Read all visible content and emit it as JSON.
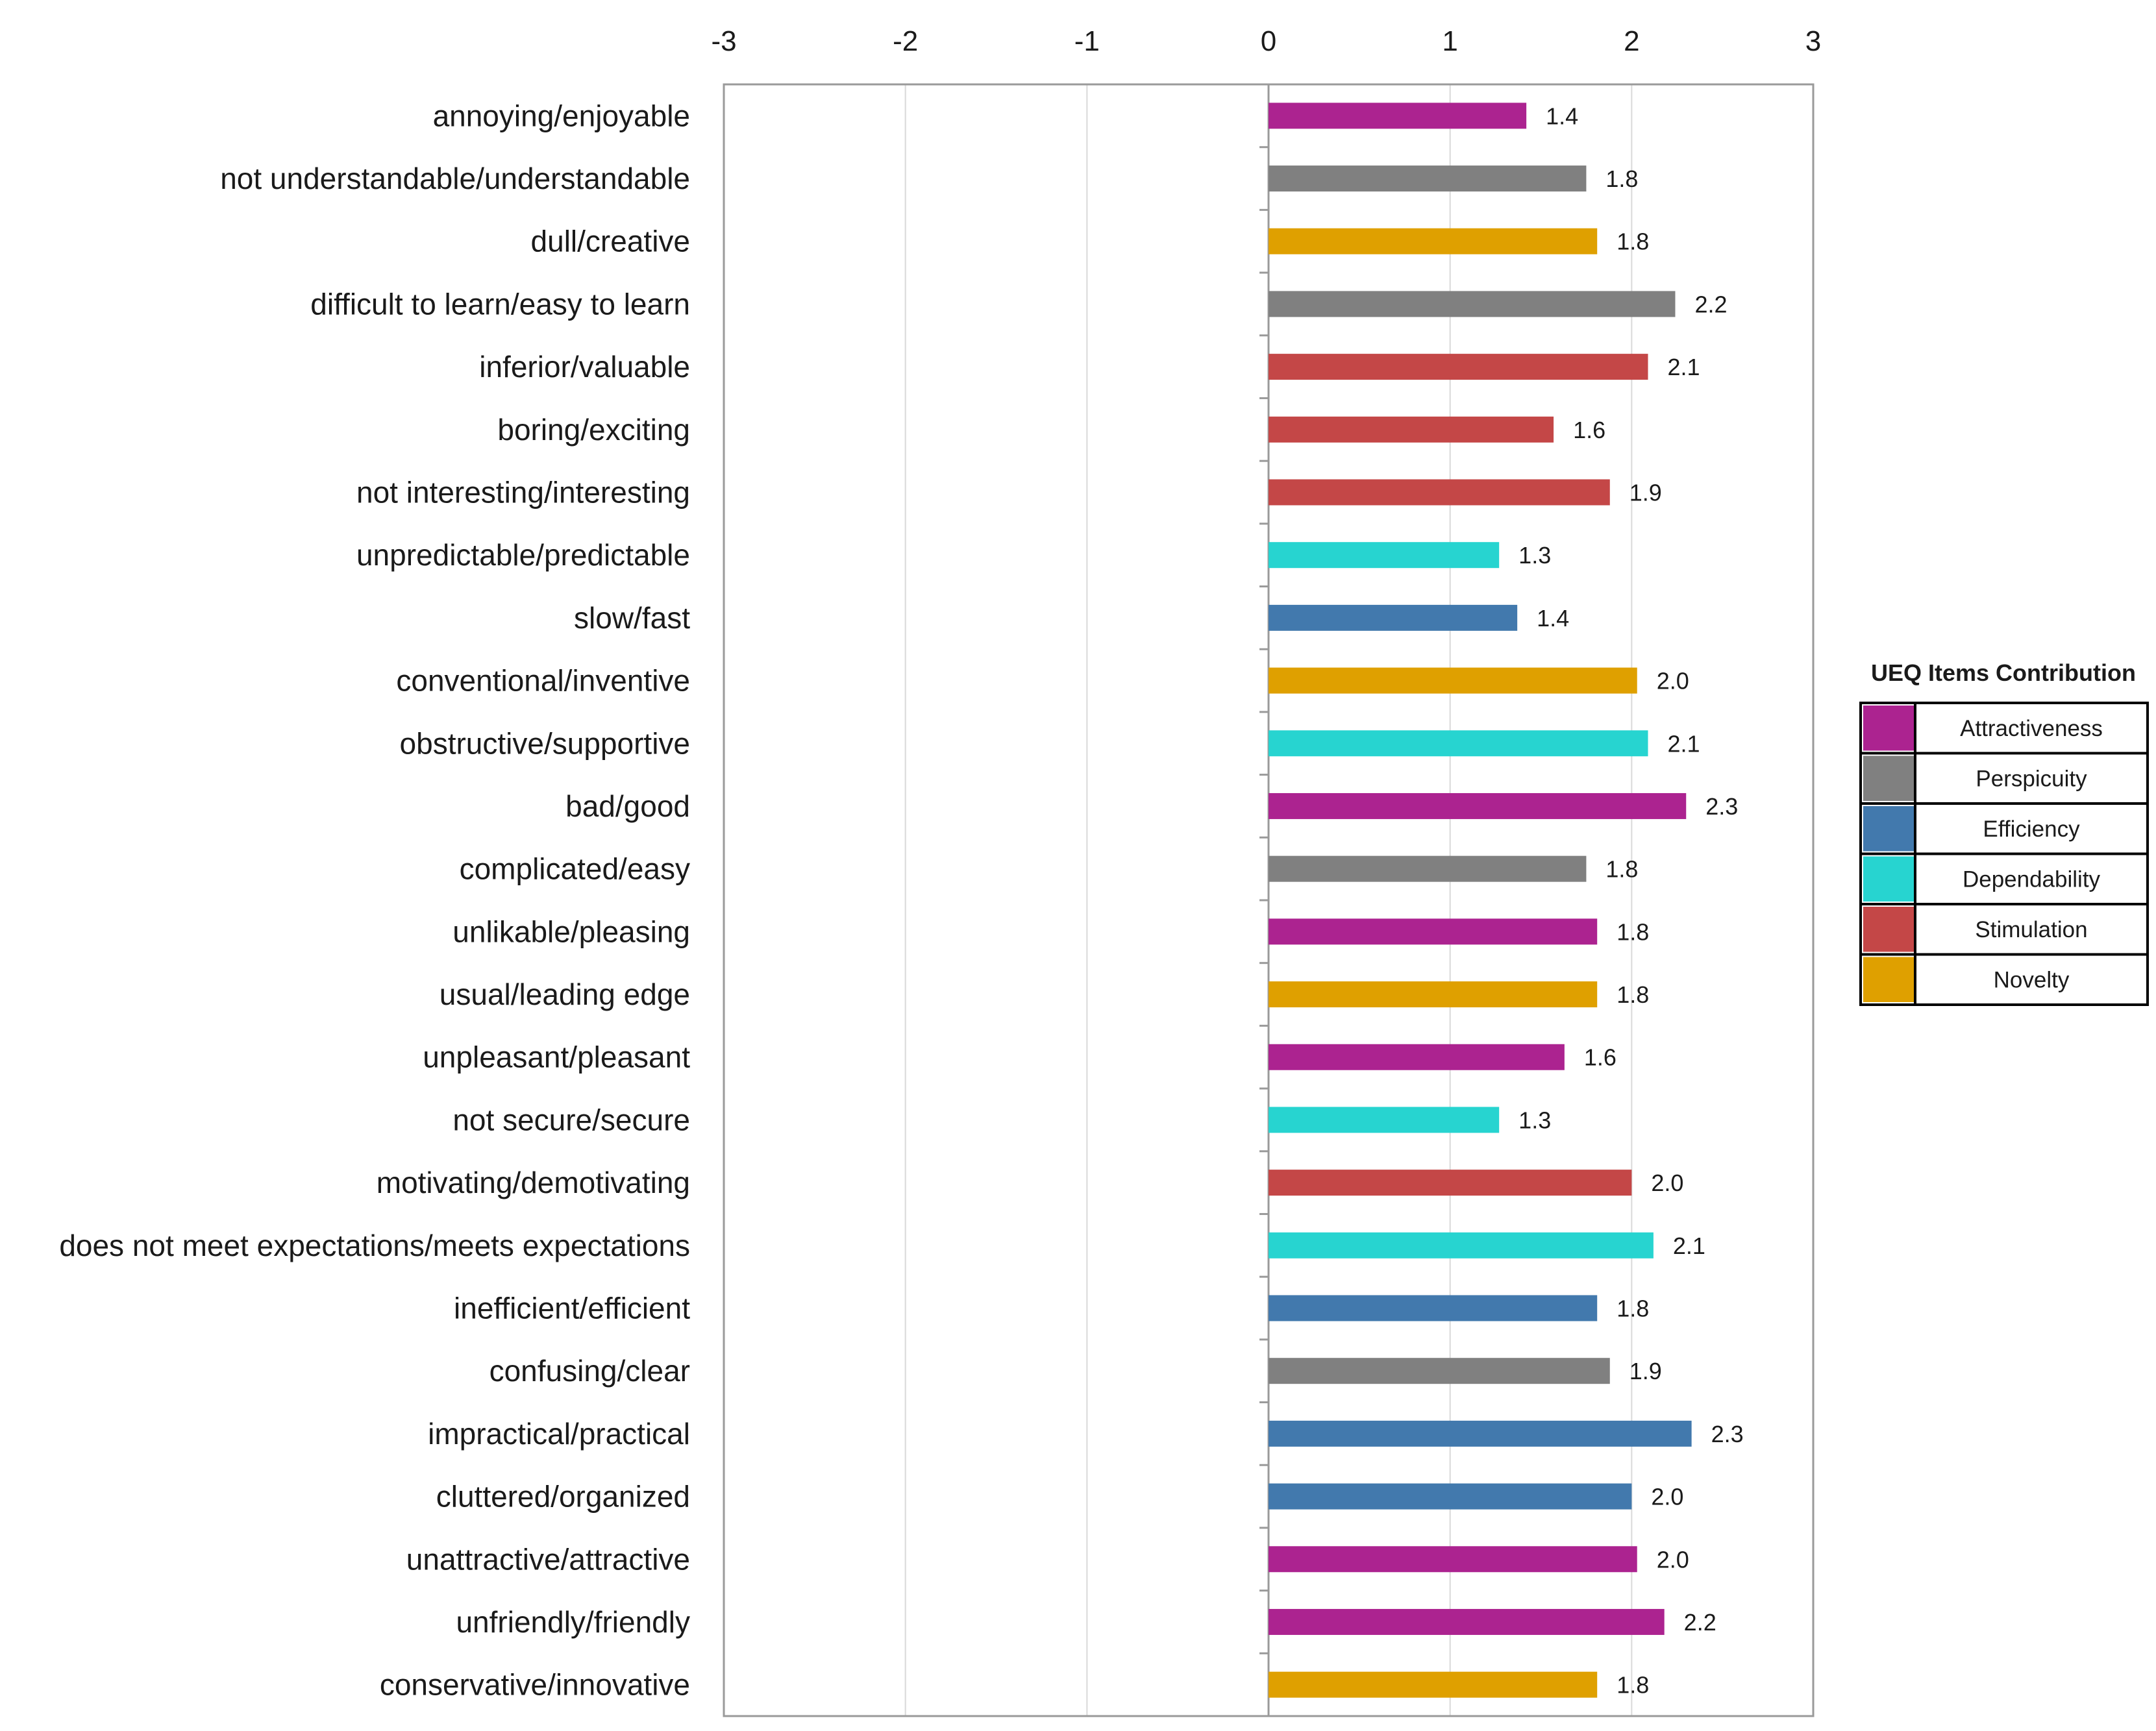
{
  "chart_data": {
    "type": "bar",
    "orientation": "horizontal",
    "title": "",
    "xlabel": "",
    "ylabel": "",
    "xlim": [
      -3,
      3
    ],
    "xticks": [
      "-3",
      "-2",
      "-1",
      "0",
      "1",
      "2",
      "3"
    ],
    "grid": true,
    "legend_position": "right",
    "legend_title": "UEQ  Items Contribution",
    "scales": [
      {
        "name": "Attractiveness",
        "color": "#AC2390"
      },
      {
        "name": "Perspicuity",
        "color": "#808080"
      },
      {
        "name": "Efficiency",
        "color": "#4279AD"
      },
      {
        "name": "Dependability",
        "color": "#27D4D0"
      },
      {
        "name": "Stimulation",
        "color": "#C44747"
      },
      {
        "name": "Novelty",
        "color": "#DFA000"
      }
    ],
    "items": [
      {
        "label": "annoying/enjoyable",
        "value": 1.42,
        "display": "1.4",
        "scale": "Attractiveness"
      },
      {
        "label": "not understandable/understandable",
        "value": 1.75,
        "display": "1.8",
        "scale": "Perspicuity"
      },
      {
        "label": "dull/creative",
        "value": 1.81,
        "display": "1.8",
        "scale": "Novelty"
      },
      {
        "label": "difficult to learn/easy to learn",
        "value": 2.24,
        "display": "2.2",
        "scale": "Perspicuity"
      },
      {
        "label": "inferior/valuable",
        "value": 2.09,
        "display": "2.1",
        "scale": "Stimulation"
      },
      {
        "label": "boring/exciting",
        "value": 1.57,
        "display": "1.6",
        "scale": "Stimulation"
      },
      {
        "label": "not interesting/interesting",
        "value": 1.88,
        "display": "1.9",
        "scale": "Stimulation"
      },
      {
        "label": "unpredictable/predictable",
        "value": 1.27,
        "display": "1.3",
        "scale": "Dependability"
      },
      {
        "label": "slow/fast",
        "value": 1.37,
        "display": "1.4",
        "scale": "Efficiency"
      },
      {
        "label": "conventional/inventive",
        "value": 2.03,
        "display": "2.0",
        "scale": "Novelty"
      },
      {
        "label": "obstructive/supportive",
        "value": 2.09,
        "display": "2.1",
        "scale": "Dependability"
      },
      {
        "label": "bad/good",
        "value": 2.3,
        "display": "2.3",
        "scale": "Attractiveness"
      },
      {
        "label": "complicated/easy",
        "value": 1.75,
        "display": "1.8",
        "scale": "Perspicuity"
      },
      {
        "label": "unlikable/pleasing",
        "value": 1.81,
        "display": "1.8",
        "scale": "Attractiveness"
      },
      {
        "label": "usual/leading edge",
        "value": 1.81,
        "display": "1.8",
        "scale": "Novelty"
      },
      {
        "label": "unpleasant/pleasant",
        "value": 1.63,
        "display": "1.6",
        "scale": "Attractiveness"
      },
      {
        "label": "not secure/secure",
        "value": 1.27,
        "display": "1.3",
        "scale": "Dependability"
      },
      {
        "label": "motivating/demotivating",
        "value": 2.0,
        "display": "2.0",
        "scale": "Stimulation"
      },
      {
        "label": "does not meet expectations/meets expectations",
        "value": 2.12,
        "display": "2.1",
        "scale": "Dependability"
      },
      {
        "label": "inefficient/efficient",
        "value": 1.81,
        "display": "1.8",
        "scale": "Efficiency"
      },
      {
        "label": "confusing/clear",
        "value": 1.88,
        "display": "1.9",
        "scale": "Perspicuity"
      },
      {
        "label": "impractical/practical",
        "value": 2.33,
        "display": "2.3",
        "scale": "Efficiency"
      },
      {
        "label": "cluttered/organized",
        "value": 2.0,
        "display": "2.0",
        "scale": "Efficiency"
      },
      {
        "label": "unattractive/attractive",
        "value": 2.03,
        "display": "2.0",
        "scale": "Attractiveness"
      },
      {
        "label": "unfriendly/friendly",
        "value": 2.18,
        "display": "2.2",
        "scale": "Attractiveness"
      },
      {
        "label": "conservative/innovative",
        "value": 1.81,
        "display": "1.8",
        "scale": "Novelty"
      }
    ]
  }
}
